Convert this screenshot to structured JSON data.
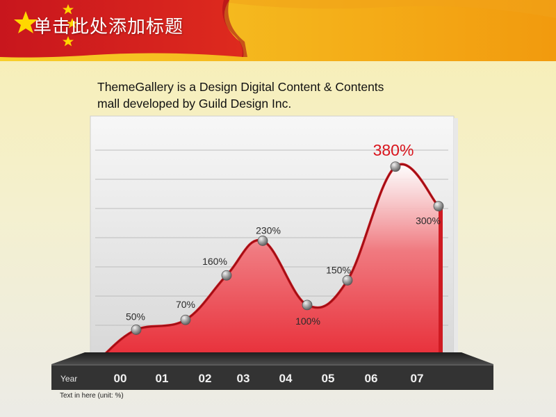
{
  "slide": {
    "title": "单击此处添加标题",
    "intro_line_1": "ThemeGallery  is a Design Digital Content & Contents",
    "intro_line_2": "mall developed by Guild Design Inc.",
    "footnote": "Text in here  (unit: %)"
  },
  "colors": {
    "flag_red": "#c8161d",
    "flag_gold": "#f5c400",
    "area_red": "#e8303a",
    "highlight_label": "#d9141c",
    "base_dark": "#3a3a3a"
  },
  "chart_data": {
    "type": "area",
    "title": "",
    "xlabel": "Year",
    "ylabel": "",
    "unit": "%",
    "categories": [
      "00",
      "01",
      "02",
      "03",
      "04",
      "05",
      "06",
      "07"
    ],
    "ylim": [
      0,
      450
    ],
    "grid": true,
    "series": [
      {
        "values": [
          50,
          70,
          160,
          230,
          100,
          150,
          380,
          300
        ],
        "labels": [
          "50%",
          "70%",
          "160%",
          "230%",
          "100%",
          "150%",
          "380%",
          "300%"
        ],
        "highlight_index": 6
      }
    ]
  }
}
